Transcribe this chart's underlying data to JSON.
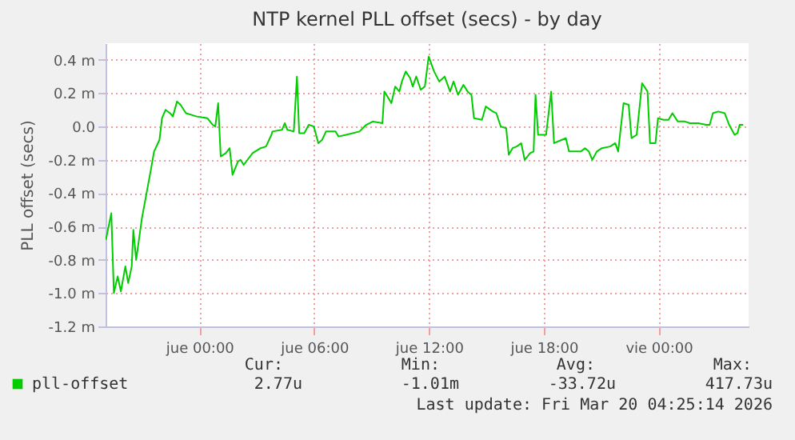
{
  "chart_data": {
    "type": "line",
    "title": "NTP kernel PLL offset (secs) - by day",
    "ylabel": "PLL offset (secs)",
    "x": [
      "2026-03-18T19:07",
      "2026-03-18T19:24",
      "2026-03-18T19:32",
      "2026-03-18T19:44",
      "2026-03-18T19:54",
      "2026-03-18T20:08",
      "2026-03-18T20:17",
      "2026-03-18T20:28",
      "2026-03-18T20:33",
      "2026-03-18T20:42",
      "2026-03-18T21:00",
      "2026-03-18T21:29",
      "2026-03-18T21:38",
      "2026-03-18T21:55",
      "2026-03-18T22:03",
      "2026-03-18T22:14",
      "2026-03-18T22:28",
      "2026-03-18T22:37",
      "2026-03-18T22:50",
      "2026-03-18T23:01",
      "2026-03-18T23:18",
      "2026-03-18T23:52",
      "2026-03-19T00:25",
      "2026-03-19T00:42",
      "2026-03-19T00:50",
      "2026-03-19T00:59",
      "2026-03-19T01:07",
      "2026-03-19T01:23",
      "2026-03-19T01:35",
      "2026-03-19T01:44",
      "2026-03-19T02:01",
      "2026-03-19T02:09",
      "2026-03-19T02:19",
      "2026-03-19T02:31",
      "2026-03-19T02:47",
      "2026-03-19T03:12",
      "2026-03-19T03:29",
      "2026-03-19T03:46",
      "2026-03-19T03:49",
      "2026-03-19T04:19",
      "2026-03-19T04:28",
      "2026-03-19T04:36",
      "2026-03-19T04:56",
      "2026-03-19T05:06",
      "2026-03-19T05:13",
      "2026-03-19T05:29",
      "2026-03-19T05:43",
      "2026-03-19T05:59",
      "2026-03-19T06:13",
      "2026-03-19T06:25",
      "2026-03-19T06:37",
      "2026-03-19T07:07",
      "2026-03-19T07:16",
      "2026-03-19T07:40",
      "2026-03-19T08:22",
      "2026-03-19T08:43",
      "2026-03-19T09:04",
      "2026-03-19T09:34",
      "2026-03-19T09:40",
      "2026-03-19T09:53",
      "2026-03-19T10:02",
      "2026-03-19T10:14",
      "2026-03-19T10:27",
      "2026-03-19T10:35",
      "2026-03-19T10:47",
      "2026-03-19T11:01",
      "2026-03-19T11:09",
      "2026-03-19T11:20",
      "2026-03-19T11:34",
      "2026-03-19T11:47",
      "2026-03-19T11:59",
      "2026-03-19T12:16",
      "2026-03-19T12:32",
      "2026-03-19T12:49",
      "2026-03-19T13:06",
      "2026-03-19T13:17",
      "2026-03-19T13:31",
      "2026-03-19T13:48",
      "2026-03-19T14:01",
      "2026-03-19T14:13",
      "2026-03-19T14:21",
      "2026-03-19T14:46",
      "2026-03-19T14:58",
      "2026-03-19T15:20",
      "2026-03-19T15:31",
      "2026-03-19T15:45",
      "2026-03-19T16:02",
      "2026-03-19T16:10",
      "2026-03-19T16:22",
      "2026-03-19T16:35",
      "2026-03-19T16:49",
      "2026-03-19T17:00",
      "2026-03-19T17:17",
      "2026-03-19T17:28",
      "2026-03-19T17:34",
      "2026-03-19T17:42",
      "2026-03-19T18:07",
      "2026-03-19T18:23",
      "2026-03-19T18:32",
      "2026-03-19T18:57",
      "2026-03-19T19:09",
      "2026-03-19T19:19",
      "2026-03-19T19:35",
      "2026-03-19T19:56",
      "2026-03-19T20:09",
      "2026-03-19T20:21",
      "2026-03-19T20:32",
      "2026-03-19T20:46",
      "2026-03-19T21:02",
      "2026-03-19T21:28",
      "2026-03-19T21:44",
      "2026-03-19T21:53",
      "2026-03-19T22:10",
      "2026-03-19T22:26",
      "2026-03-19T22:35",
      "2026-03-19T22:51",
      "2026-03-19T23:08",
      "2026-03-19T23:25",
      "2026-03-19T23:33",
      "2026-03-19T23:50",
      "2026-03-19T23:58",
      "2026-03-20T00:15",
      "2026-03-20T00:31",
      "2026-03-20T00:43",
      "2026-03-20T01:00",
      "2026-03-20T01:22",
      "2026-03-20T01:38",
      "2026-03-20T02:04",
      "2026-03-20T02:29",
      "2026-03-20T02:40",
      "2026-03-20T02:50",
      "2026-03-20T03:07",
      "2026-03-20T03:27",
      "2026-03-20T03:41",
      "2026-03-20T03:58",
      "2026-03-20T04:07",
      "2026-03-20T04:14",
      "2026-03-20T04:25"
    ],
    "series": [
      {
        "name": "pll-offset",
        "color": "#00cc00",
        "values": [
          -0.68,
          -0.52,
          -1.0,
          -0.9,
          -0.99,
          -0.84,
          -0.94,
          -0.84,
          -0.62,
          -0.8,
          -0.55,
          -0.25,
          -0.15,
          -0.08,
          0.05,
          0.1,
          0.08,
          0.06,
          0.15,
          0.13,
          0.08,
          0.06,
          0.05,
          0.01,
          0.0,
          0.14,
          -0.18,
          -0.16,
          -0.13,
          -0.29,
          -0.21,
          -0.2,
          -0.23,
          -0.2,
          -0.16,
          -0.13,
          -0.12,
          -0.05,
          -0.03,
          -0.02,
          0.02,
          -0.02,
          -0.03,
          0.3,
          -0.04,
          -0.04,
          0.01,
          0.0,
          -0.1,
          -0.08,
          -0.03,
          -0.03,
          -0.06,
          -0.05,
          -0.03,
          0.01,
          0.03,
          0.02,
          0.21,
          0.17,
          0.14,
          0.24,
          0.21,
          0.27,
          0.33,
          0.29,
          0.24,
          0.3,
          0.22,
          0.24,
          0.42,
          0.33,
          0.27,
          0.3,
          0.21,
          0.27,
          0.19,
          0.25,
          0.21,
          0.19,
          0.05,
          0.04,
          0.12,
          0.09,
          0.08,
          0.0,
          -0.01,
          -0.17,
          -0.13,
          -0.12,
          -0.1,
          -0.2,
          -0.16,
          -0.15,
          0.19,
          -0.05,
          -0.05,
          0.21,
          -0.1,
          -0.08,
          -0.07,
          -0.15,
          -0.15,
          -0.15,
          -0.13,
          -0.15,
          -0.2,
          -0.15,
          -0.13,
          -0.12,
          -0.1,
          -0.15,
          0.14,
          0.13,
          -0.07,
          -0.05,
          0.26,
          0.21,
          -0.1,
          -0.1,
          0.05,
          0.04,
          0.04,
          0.08,
          0.03,
          0.03,
          0.02,
          0.02,
          0.01,
          0.01,
          0.08,
          0.09,
          0.08,
          0.01,
          -0.05,
          -0.04,
          0.01,
          0.01
        ]
      }
    ],
    "xlim": [
      "2026-03-18T19:06",
      "2026-03-20T04:42"
    ],
    "xticks": [
      {
        "value": "2026-03-19T00:00",
        "label": "jue 00:00"
      },
      {
        "value": "2026-03-19T06:00",
        "label": "jue 06:00"
      },
      {
        "value": "2026-03-19T12:00",
        "label": "jue 12:00"
      },
      {
        "value": "2026-03-19T18:00",
        "label": "jue 18:00"
      },
      {
        "value": "2026-03-20T00:00",
        "label": "vie 00:00"
      }
    ],
    "ylim": [
      -1.2,
      0.5
    ],
    "yticks": [
      {
        "value": -1.2,
        "label": "-1.2 m"
      },
      {
        "value": -1.0,
        "label": "-1.0 m"
      },
      {
        "value": -0.8,
        "label": "-0.8 m"
      },
      {
        "value": -0.6,
        "label": "-0.6 m"
      },
      {
        "value": -0.4,
        "label": "-0.4 m"
      },
      {
        "value": -0.2,
        "label": "-0.2 m"
      },
      {
        "value": 0.0,
        "label": "0.0"
      },
      {
        "value": 0.2,
        "label": "0.2 m"
      },
      {
        "value": 0.4,
        "label": "0.4 m"
      }
    ],
    "grid": true,
    "legend": "bottom",
    "marker": "none",
    "line_style": "solid",
    "annotations": [
      "Cur:",
      "Min:",
      "Avg:",
      "Max:",
      "2.77u",
      "-1.01m",
      "-33.72u",
      "417.73u",
      "Last update: Fri Mar 20 04:25:14 2026"
    ]
  }
}
